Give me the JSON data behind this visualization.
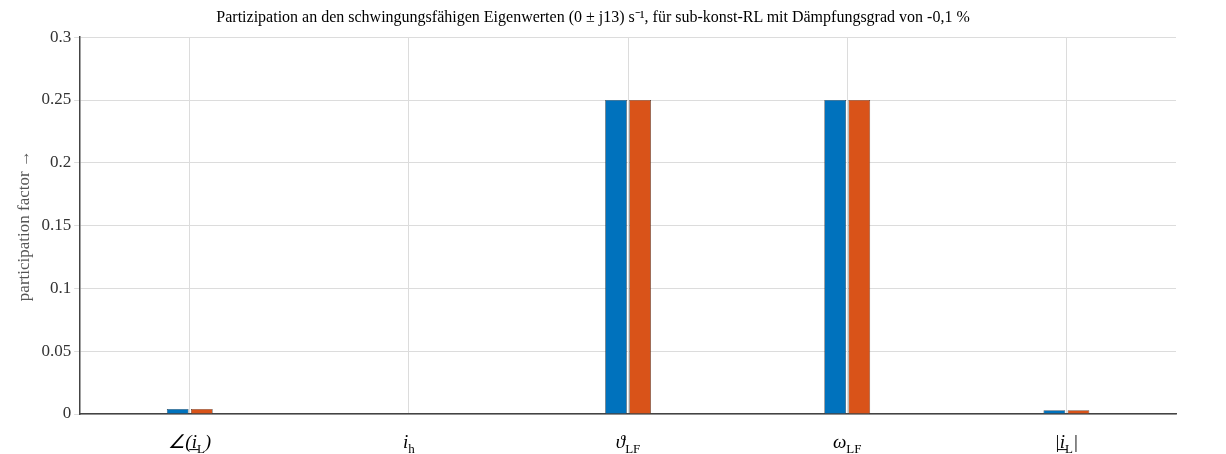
{
  "chart_data": {
    "type": "bar",
    "title": "Partizipation an den schwingungsfähigen Eigenwerten (0 ± j13) s⁻¹, für sub-konst-RL mit Dämpfungsgrad von -0,1 %",
    "ylabel": "participation factor →",
    "categories": [
      "∠(i̲$_{L}$)",
      "i$_{h}$",
      "ϑ$_{LF}$",
      "ω$_{LF}$",
      "|i̲$_{L}$|"
    ],
    "series": [
      {
        "color": "#0072bd",
        "values": [
          0.004,
          0,
          0.25,
          0.25,
          0.003
        ]
      },
      {
        "color": "#d95319",
        "values": [
          0.004,
          0,
          0.25,
          0.25,
          0.003
        ]
      }
    ],
    "ylim": [
      0,
      0.3
    ],
    "yticks": [
      0,
      0.05,
      0.1,
      0.15,
      0.2,
      0.25,
      0.3
    ],
    "grid": true,
    "legend": false
  }
}
